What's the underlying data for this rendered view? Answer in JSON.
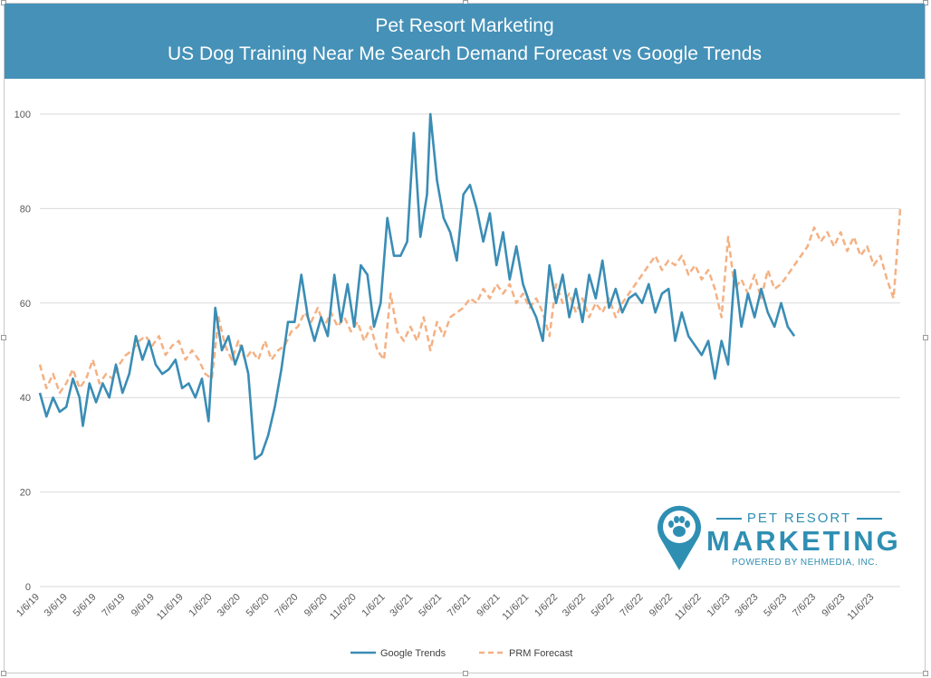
{
  "title": {
    "line1": "Pet Resort Marketing",
    "line2": "US Dog Training Near Me Search Demand Forecast vs Google Trends"
  },
  "logo": {
    "top": "PET RESORT",
    "main": "MARKETING",
    "sub": "POWERED BY NEHMEDIA, INC."
  },
  "colors": {
    "title_bar": "#4591b8",
    "google_trends": "#3a8db5",
    "prm_forecast": "#f4b183",
    "grid": "#d9d9d9",
    "logo": "#2f8fb3"
  },
  "chart_data": {
    "type": "line",
    "title": "Pet Resort Marketing US Dog Training Near Me Search Demand Forecast vs Google Trends",
    "xlabel": "",
    "ylabel": "",
    "ylim": [
      0,
      100
    ],
    "yticks": [
      0,
      20,
      40,
      60,
      80,
      100
    ],
    "xlim": [
      "1/6/19",
      "12/31/23"
    ],
    "xticks": [
      "1/6/19",
      "3/6/19",
      "5/6/19",
      "7/6/19",
      "9/6/19",
      "11/6/19",
      "1/6/20",
      "3/6/20",
      "5/6/20",
      "7/6/20",
      "9/6/20",
      "11/6/20",
      "1/6/21",
      "3/6/21",
      "5/6/21",
      "7/6/21",
      "9/6/21",
      "11/6/21",
      "1/6/22",
      "3/6/22",
      "5/6/22",
      "7/6/22",
      "9/6/22",
      "11/6/22",
      "1/6/23",
      "3/6/23",
      "5/6/23",
      "7/6/23",
      "9/6/23",
      "11/6/23"
    ],
    "grid": true,
    "legend_position": "bottom",
    "series": [
      {
        "name": "Google Trends",
        "color": "#3a8db5",
        "style": "solid",
        "points": [
          [
            "1/6/19",
            41
          ],
          [
            "1/20/19",
            36
          ],
          [
            "2/3/19",
            40
          ],
          [
            "2/17/19",
            37
          ],
          [
            "3/3/19",
            38
          ],
          [
            "3/17/19",
            44
          ],
          [
            "3/31/19",
            40
          ],
          [
            "4/7/19",
            34
          ],
          [
            "4/21/19",
            43
          ],
          [
            "5/5/19",
            39
          ],
          [
            "5/19/19",
            43
          ],
          [
            "6/2/19",
            40
          ],
          [
            "6/16/19",
            47
          ],
          [
            "6/30/19",
            41
          ],
          [
            "7/14/19",
            45
          ],
          [
            "7/28/19",
            53
          ],
          [
            "8/11/19",
            48
          ],
          [
            "8/25/19",
            52
          ],
          [
            "9/8/19",
            47
          ],
          [
            "9/22/19",
            45
          ],
          [
            "10/6/19",
            46
          ],
          [
            "10/20/19",
            48
          ],
          [
            "11/3/19",
            42
          ],
          [
            "11/17/19",
            43
          ],
          [
            "12/1/19",
            40
          ],
          [
            "12/15/19",
            44
          ],
          [
            "12/29/19",
            35
          ],
          [
            "1/12/20",
            59
          ],
          [
            "1/26/20",
            50
          ],
          [
            "2/9/20",
            53
          ],
          [
            "2/23/20",
            47
          ],
          [
            "3/8/20",
            51
          ],
          [
            "3/22/20",
            45
          ],
          [
            "4/5/20",
            27
          ],
          [
            "4/19/20",
            28
          ],
          [
            "5/3/20",
            32
          ],
          [
            "5/17/20",
            38
          ],
          [
            "5/31/20",
            46
          ],
          [
            "6/14/20",
            56
          ],
          [
            "6/28/20",
            56
          ],
          [
            "7/12/20",
            66
          ],
          [
            "7/26/20",
            57
          ],
          [
            "8/9/20",
            52
          ],
          [
            "8/23/20",
            57
          ],
          [
            "9/6/20",
            53
          ],
          [
            "9/20/20",
            66
          ],
          [
            "10/4/20",
            56
          ],
          [
            "10/18/20",
            64
          ],
          [
            "11/1/20",
            55
          ],
          [
            "11/15/20",
            68
          ],
          [
            "11/29/20",
            66
          ],
          [
            "12/13/20",
            55
          ],
          [
            "12/27/20",
            60
          ],
          [
            "1/10/21",
            78
          ],
          [
            "1/24/21",
            70
          ],
          [
            "2/7/21",
            70
          ],
          [
            "2/21/21",
            73
          ],
          [
            "3/7/21",
            96
          ],
          [
            "3/21/21",
            74
          ],
          [
            "4/4/21",
            83
          ],
          [
            "4/11/21",
            100
          ],
          [
            "4/25/21",
            86
          ],
          [
            "5/9/21",
            78
          ],
          [
            "5/23/21",
            75
          ],
          [
            "6/6/21",
            69
          ],
          [
            "6/20/21",
            83
          ],
          [
            "7/4/21",
            85
          ],
          [
            "7/18/21",
            80
          ],
          [
            "8/1/21",
            73
          ],
          [
            "8/15/21",
            79
          ],
          [
            "8/29/21",
            68
          ],
          [
            "9/12/21",
            75
          ],
          [
            "9/26/21",
            65
          ],
          [
            "10/10/21",
            72
          ],
          [
            "10/24/21",
            64
          ],
          [
            "11/7/21",
            60
          ],
          [
            "11/21/21",
            57
          ],
          [
            "12/5/21",
            52
          ],
          [
            "12/19/21",
            68
          ],
          [
            "1/2/22",
            60
          ],
          [
            "1/16/22",
            66
          ],
          [
            "1/30/22",
            57
          ],
          [
            "2/13/22",
            63
          ],
          [
            "2/27/22",
            56
          ],
          [
            "3/13/22",
            66
          ],
          [
            "3/27/22",
            61
          ],
          [
            "4/10/22",
            69
          ],
          [
            "4/24/22",
            59
          ],
          [
            "5/8/22",
            63
          ],
          [
            "5/22/22",
            58
          ],
          [
            "6/5/22",
            61
          ],
          [
            "6/19/22",
            62
          ],
          [
            "7/3/22",
            60
          ],
          [
            "7/17/22",
            64
          ],
          [
            "7/31/22",
            58
          ],
          [
            "8/14/22",
            62
          ],
          [
            "8/28/22",
            63
          ],
          [
            "9/11/22",
            52
          ],
          [
            "9/25/22",
            58
          ],
          [
            "10/9/22",
            53
          ],
          [
            "10/23/22",
            51
          ],
          [
            "11/6/22",
            49
          ],
          [
            "11/20/22",
            52
          ],
          [
            "12/4/22",
            44
          ],
          [
            "12/18/22",
            52
          ],
          [
            "1/1/23",
            47
          ],
          [
            "1/15/23",
            67
          ],
          [
            "1/29/23",
            55
          ],
          [
            "2/12/23",
            62
          ],
          [
            "2/26/23",
            57
          ],
          [
            "3/12/23",
            63
          ],
          [
            "3/26/23",
            58
          ],
          [
            "4/9/23",
            55
          ],
          [
            "4/23/23",
            60
          ],
          [
            "5/7/23",
            55
          ],
          [
            "5/21/23",
            53
          ]
        ]
      },
      {
        "name": "PRM Forecast",
        "color": "#f4b183",
        "style": "dashed",
        "points": [
          [
            "1/6/19",
            47
          ],
          [
            "1/20/19",
            42
          ],
          [
            "2/3/19",
            45
          ],
          [
            "2/17/19",
            41
          ],
          [
            "3/3/19",
            43
          ],
          [
            "3/17/19",
            46
          ],
          [
            "3/31/19",
            42
          ],
          [
            "4/14/19",
            44
          ],
          [
            "4/28/19",
            48
          ],
          [
            "5/12/19",
            43
          ],
          [
            "5/26/19",
            45
          ],
          [
            "6/9/19",
            44
          ],
          [
            "6/23/19",
            47
          ],
          [
            "7/7/19",
            49
          ],
          [
            "7/21/19",
            50
          ],
          [
            "8/4/19",
            52
          ],
          [
            "8/18/19",
            53
          ],
          [
            "9/1/19",
            51
          ],
          [
            "9/15/19",
            53
          ],
          [
            "9/29/19",
            49
          ],
          [
            "10/13/19",
            51
          ],
          [
            "10/27/19",
            52
          ],
          [
            "11/10/19",
            48
          ],
          [
            "11/24/19",
            50
          ],
          [
            "12/8/19",
            48
          ],
          [
            "12/22/19",
            45
          ],
          [
            "1/5/20",
            44
          ],
          [
            "1/19/20",
            57
          ],
          [
            "2/2/20",
            51
          ],
          [
            "2/16/20",
            48
          ],
          [
            "3/1/20",
            52
          ],
          [
            "3/15/20",
            48
          ],
          [
            "3/29/20",
            50
          ],
          [
            "4/12/20",
            48
          ],
          [
            "4/26/20",
            52
          ],
          [
            "5/10/20",
            48
          ],
          [
            "5/24/20",
            50
          ],
          [
            "6/7/20",
            51
          ],
          [
            "6/21/20",
            54
          ],
          [
            "7/5/20",
            55
          ],
          [
            "7/19/20",
            58
          ],
          [
            "8/2/20",
            56
          ],
          [
            "8/16/20",
            59
          ],
          [
            "8/30/20",
            55
          ],
          [
            "9/13/20",
            58
          ],
          [
            "9/27/20",
            55
          ],
          [
            "10/11/20",
            57
          ],
          [
            "10/25/20",
            54
          ],
          [
            "11/8/20",
            56
          ],
          [
            "11/22/20",
            52
          ],
          [
            "12/6/20",
            55
          ],
          [
            "12/20/20",
            50
          ],
          [
            "1/3/21",
            48
          ],
          [
            "1/17/21",
            62
          ],
          [
            "1/31/21",
            54
          ],
          [
            "2/14/21",
            52
          ],
          [
            "2/28/21",
            55
          ],
          [
            "3/14/21",
            52
          ],
          [
            "3/28/21",
            57
          ],
          [
            "4/11/21",
            50
          ],
          [
            "4/25/21",
            56
          ],
          [
            "5/9/21",
            53
          ],
          [
            "5/23/21",
            57
          ],
          [
            "6/6/21",
            58
          ],
          [
            "6/20/21",
            59
          ],
          [
            "7/4/21",
            61
          ],
          [
            "7/18/21",
            60
          ],
          [
            "8/1/21",
            63
          ],
          [
            "8/15/21",
            61
          ],
          [
            "8/29/21",
            64
          ],
          [
            "9/12/21",
            62
          ],
          [
            "9/26/21",
            64
          ],
          [
            "10/10/21",
            60
          ],
          [
            "10/24/21",
            62
          ],
          [
            "11/7/21",
            59
          ],
          [
            "11/21/21",
            61
          ],
          [
            "12/5/21",
            58
          ],
          [
            "12/19/21",
            53
          ],
          [
            "1/2/22",
            64
          ],
          [
            "1/16/22",
            60
          ],
          [
            "1/30/22",
            62
          ],
          [
            "2/13/22",
            58
          ],
          [
            "2/27/22",
            61
          ],
          [
            "3/13/22",
            57
          ],
          [
            "3/27/22",
            60
          ],
          [
            "4/10/22",
            58
          ],
          [
            "4/24/22",
            61
          ],
          [
            "5/8/22",
            57
          ],
          [
            "5/22/22",
            60
          ],
          [
            "6/5/22",
            62
          ],
          [
            "6/19/22",
            64
          ],
          [
            "7/3/22",
            66
          ],
          [
            "7/17/22",
            68
          ],
          [
            "7/31/22",
            70
          ],
          [
            "8/14/22",
            67
          ],
          [
            "8/28/22",
            69
          ],
          [
            "9/11/22",
            68
          ],
          [
            "9/25/22",
            70
          ],
          [
            "10/9/22",
            66
          ],
          [
            "10/23/22",
            68
          ],
          [
            "11/6/22",
            65
          ],
          [
            "11/20/22",
            67
          ],
          [
            "12/4/22",
            63
          ],
          [
            "12/18/22",
            57
          ],
          [
            "1/1/23",
            74
          ],
          [
            "1/15/23",
            63
          ],
          [
            "1/29/23",
            65
          ],
          [
            "2/12/23",
            62
          ],
          [
            "2/26/23",
            66
          ],
          [
            "3/12/23",
            61
          ],
          [
            "3/26/23",
            67
          ],
          [
            "4/9/23",
            63
          ],
          [
            "4/23/23",
            64
          ],
          [
            "5/7/23",
            66
          ],
          [
            "5/21/23",
            68
          ],
          [
            "6/4/23",
            70
          ],
          [
            "6/18/23",
            72
          ],
          [
            "7/2/23",
            76
          ],
          [
            "7/16/23",
            73
          ],
          [
            "7/30/23",
            75
          ],
          [
            "8/13/23",
            72
          ],
          [
            "8/27/23",
            75
          ],
          [
            "9/10/23",
            71
          ],
          [
            "9/24/23",
            74
          ],
          [
            "10/8/23",
            70
          ],
          [
            "10/22/23",
            72
          ],
          [
            "11/5/23",
            68
          ],
          [
            "11/19/23",
            70
          ],
          [
            "12/3/23",
            65
          ],
          [
            "12/17/23",
            61
          ],
          [
            "12/31/23",
            80
          ]
        ]
      }
    ]
  }
}
